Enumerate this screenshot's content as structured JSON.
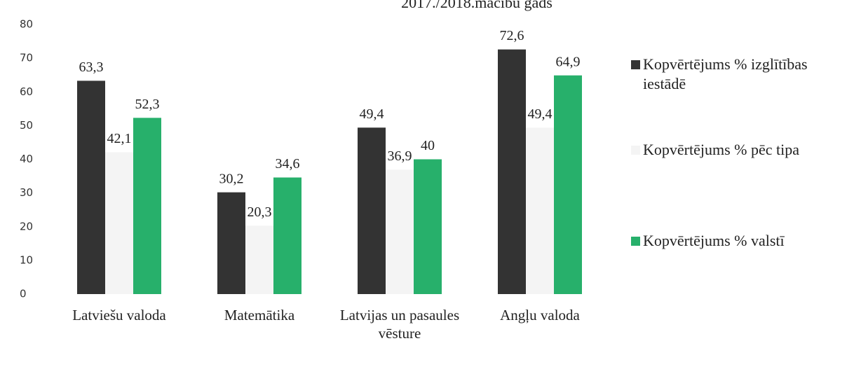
{
  "chart_data": {
    "type": "bar",
    "title": "2017./2018.mācību gads",
    "categories": [
      "Latviešu valoda",
      "Matemātika",
      "Latvijas un pasaules vēsture",
      "Angļu valoda"
    ],
    "series": [
      {
        "name": "Kopvērtējums % izglītības iestādē",
        "color": "#333333",
        "values": [
          63.3,
          30.2,
          49.4,
          72.6
        ],
        "value_labels": [
          "63,3",
          "30,2",
          "49,4",
          "72,6"
        ]
      },
      {
        "name": "Kopvērtējums % pēc tipa",
        "color": "#f4f4f4",
        "values": [
          42.1,
          20.3,
          36.9,
          49.4
        ],
        "value_labels": [
          "42,1",
          "20,3",
          "36,9",
          "49,4"
        ]
      },
      {
        "name": "Kopvērtējums % valstī",
        "color": "#27b06b",
        "values": [
          52.3,
          34.6,
          40,
          64.9
        ],
        "value_labels": [
          "52,3",
          "34,6",
          "40",
          "64,9"
        ]
      }
    ],
    "ylim": [
      0,
      80
    ],
    "yticks": [
      0,
      10,
      20,
      30,
      40,
      50,
      60,
      70,
      80
    ],
    "grid": false,
    "legend": "right"
  }
}
